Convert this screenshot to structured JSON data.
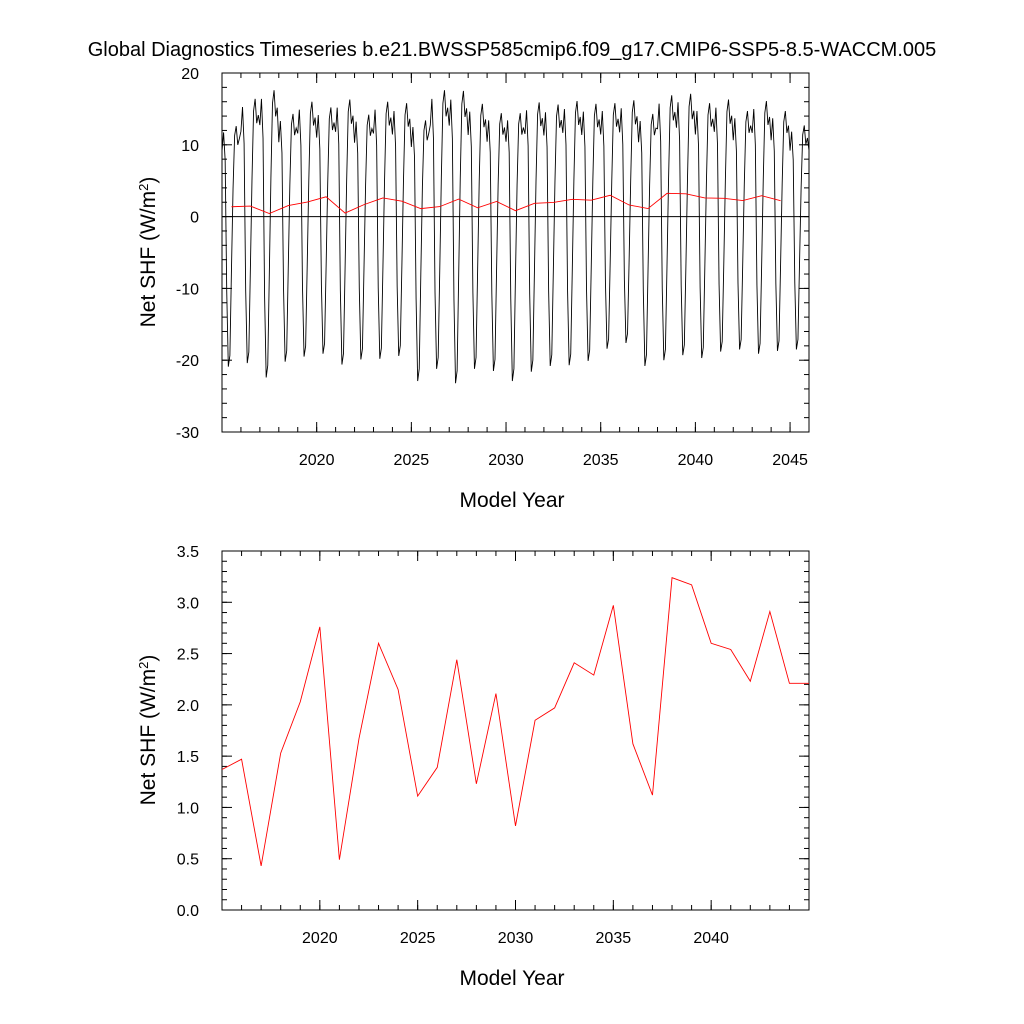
{
  "title": "Global Diagnostics Timeseries b.e21.BWSSP585cmip6.f09_g17.CMIP6-SSP5-8.5-WACCM.005",
  "chart_data": [
    {
      "type": "line",
      "xlabel": "Model Year",
      "ylabel": "Net SHF (W/m",
      "ylabel_sup": "2",
      "ylabel_close": ")",
      "xlim": [
        2015.0,
        2046.0
      ],
      "ylim": [
        -30,
        20
      ],
      "xticks": [
        2020,
        2025,
        2030,
        2035,
        2040,
        2045
      ],
      "yticks": [
        20,
        10,
        0,
        -10,
        -20,
        -30
      ],
      "zero_line": true,
      "series": [
        {
          "color": "#000000",
          "note_monthly_pattern": [
            10.5,
            13.5,
            9.0,
            -10.0,
            -20.0,
            -18.5,
            -7.0,
            4.5,
            13.0,
            14.5,
            11.5,
            12.5
          ],
          "pattern_start": 2015.0,
          "pattern_end": 2046.0,
          "pattern_step": 0.0833333,
          "min_per_year": [
            -20.9,
            -20.4,
            -22.4,
            -20.2,
            -19.5,
            -19.1,
            -20.6,
            -19.9,
            -19.8,
            -19.4,
            -22.9,
            -21.2,
            -23.2,
            -21.2,
            -21.5,
            -22.9,
            -21.6,
            -20.8,
            -20.7,
            -20.1,
            -18.4,
            -17.6,
            -20.8,
            -20.0,
            -19.3,
            -19.7,
            -18.8,
            -18.5,
            -19.1,
            -18.7,
            -18.5
          ],
          "max_per_year": [
            12.6,
            16.4,
            17.6,
            14.3,
            16.0,
            15.2,
            16.3,
            14.2,
            16.0,
            15.8,
            13.4,
            17.6,
            17.5,
            15.7,
            14.4,
            14.4,
            15.9,
            15.6,
            16.1,
            15.7,
            15.8,
            16.2,
            14.3,
            16.9,
            17.1,
            15.8,
            16.3,
            14.7,
            16.1,
            14.7,
            12.7
          ]
        },
        {
          "color": "#ff0000",
          "x": [
            2015.5,
            2016.5,
            2017.5,
            2018.5,
            2019.5,
            2020.5,
            2021.5,
            2022.5,
            2023.5,
            2024.5,
            2025.5,
            2026.5,
            2027.5,
            2028.5,
            2029.5,
            2030.5,
            2031.5,
            2032.5,
            2033.5,
            2034.5,
            2035.5,
            2036.5,
            2037.5,
            2038.5,
            2039.5,
            2040.5,
            2041.5,
            2042.5,
            2043.5,
            2044.5
          ],
          "values": [
            1.37,
            1.47,
            0.43,
            1.53,
            2.03,
            2.76,
            0.49,
            1.67,
            2.6,
            2.15,
            1.11,
            1.39,
            2.44,
            1.23,
            2.11,
            0.82,
            1.85,
            1.97,
            2.41,
            2.29,
            2.97,
            1.62,
            1.12,
            3.24,
            3.17,
            2.6,
            2.54,
            2.23,
            2.91,
            2.21
          ]
        }
      ]
    },
    {
      "type": "line",
      "xlabel": "Model Year",
      "ylabel": "Net SHF (W/m",
      "ylabel_sup": "2",
      "ylabel_close": ")",
      "xlim": [
        2015.0,
        2045.0
      ],
      "ylim": [
        0.0,
        3.5
      ],
      "xticks": [
        2020,
        2025,
        2030,
        2035,
        2040
      ],
      "yticks": [
        "3.5",
        "3.0",
        "2.5",
        "2.0",
        "1.5",
        "1.0",
        "0.5",
        "0.0"
      ],
      "series": [
        {
          "color": "#ff0000",
          "x": [
            2015.0,
            2016.0,
            2017.0,
            2018.0,
            2019.0,
            2020.0,
            2021.0,
            2022.0,
            2023.0,
            2024.0,
            2025.0,
            2026.0,
            2027.0,
            2028.0,
            2029.0,
            2030.0,
            2031.0,
            2032.0,
            2033.0,
            2034.0,
            2035.0,
            2036.0,
            2037.0,
            2038.0,
            2039.0,
            2040.0,
            2041.0,
            2042.0,
            2043.0,
            2044.0,
            2045.0
          ],
          "values": [
            1.37,
            1.47,
            0.43,
            1.53,
            2.03,
            2.76,
            0.49,
            1.67,
            2.6,
            2.15,
            1.11,
            1.39,
            2.44,
            1.23,
            2.11,
            0.82,
            1.85,
            1.97,
            2.41,
            2.29,
            2.97,
            1.62,
            1.12,
            3.24,
            3.17,
            2.6,
            2.54,
            2.23,
            2.91,
            2.21,
            2.21
          ]
        }
      ]
    }
  ]
}
